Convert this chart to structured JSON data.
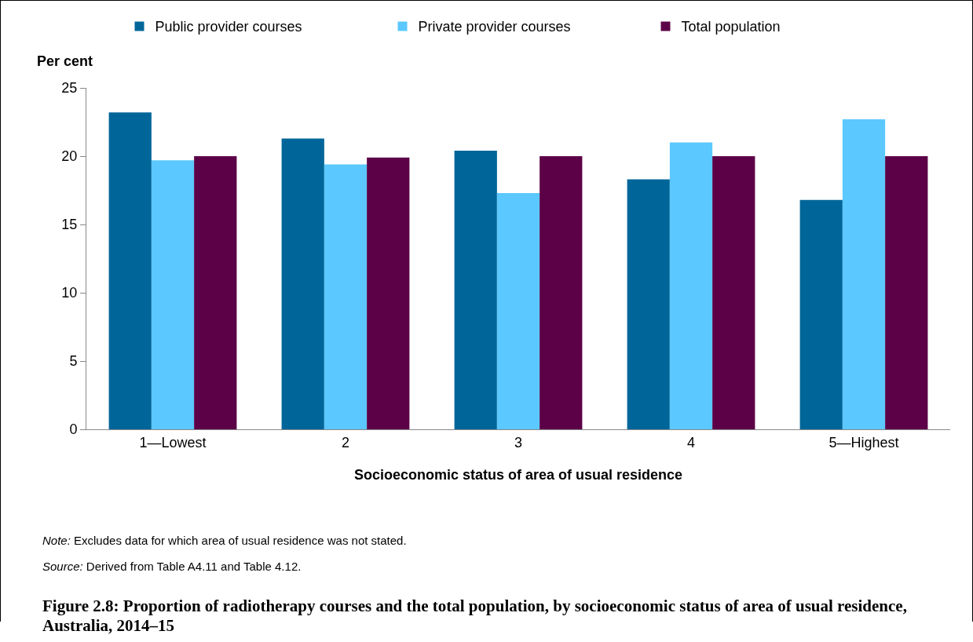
{
  "chart_data": {
    "type": "bar",
    "title": "Figure 2.8: Proportion of radiotherapy courses and the total population, by socioeconomic status of area of usual residence, Australia, 2014–15",
    "xlabel": "Socioeconomic status of area of usual residence",
    "ylabel": "Per cent",
    "categories": [
      "1—Lowest",
      "2",
      "3",
      "4",
      "5—Highest"
    ],
    "series": [
      {
        "name": "Public provider courses",
        "color": "#006699",
        "values": [
          23.2,
          21.3,
          20.4,
          18.3,
          16.8
        ]
      },
      {
        "name": "Private provider courses",
        "color": "#5bc8ff",
        "values": [
          19.7,
          19.4,
          17.3,
          21.0,
          22.7
        ]
      },
      {
        "name": "Total population",
        "color": "#5c0047",
        "values": [
          20.0,
          19.9,
          20.0,
          20.0,
          20.0
        ]
      }
    ],
    "ylim": [
      0,
      25
    ],
    "yticks": [
      0,
      5,
      10,
      15,
      20,
      25
    ],
    "grid": false,
    "legend": "top",
    "annotations": [
      "Note: Excludes data for which area of usual residence was not stated.",
      "Source: Derived from Table A4.11 and Table 4.12."
    ]
  }
}
